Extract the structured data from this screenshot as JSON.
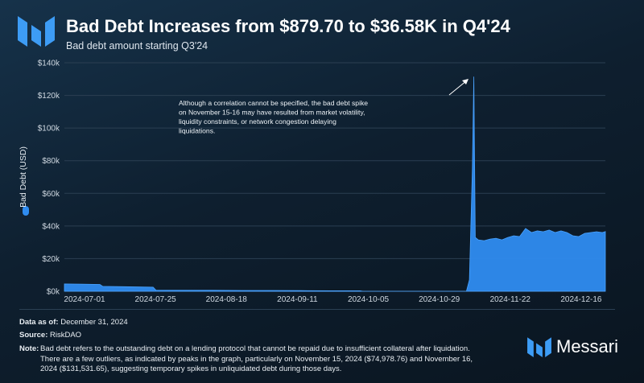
{
  "header": {
    "title": "Bad Debt Increases from $879.70 to $36.58K in Q4'24",
    "subtitle": "Bad debt amount starting Q3'24"
  },
  "chart_data": {
    "type": "area",
    "title": "Bad Debt Increases from $879.70 to $36.58K in Q4'24",
    "subtitle": "Bad debt amount starting Q3'24",
    "xlabel": "",
    "ylabel": "Bad Debt (USD)",
    "legend": "left",
    "ylim": [
      0,
      140000
    ],
    "y_ticks": [
      0,
      20000,
      40000,
      60000,
      80000,
      100000,
      120000,
      140000
    ],
    "y_tick_labels": [
      "$0k",
      "$20k",
      "$40k",
      "$60k",
      "$80k",
      "$100k",
      "$120k",
      "$140k"
    ],
    "x_tick_labels": [
      "2024-07-01",
      "2024-07-25",
      "2024-08-18",
      "2024-09-11",
      "2024-10-05",
      "2024-10-29",
      "2024-11-22",
      "2024-12-16"
    ],
    "x_tick_days": [
      0,
      24,
      48,
      72,
      96,
      120,
      144,
      168
    ],
    "x_range_days": [
      0,
      183
    ],
    "color": "#2f8cf0",
    "series": [
      {
        "name": "Bad Debt (USD)",
        "days": [
          0,
          6,
          12,
          13,
          20,
          26,
          30,
          31,
          40,
          50,
          60,
          70,
          80,
          90,
          100,
          101,
          110,
          120,
          136,
          137,
          138,
          138.5,
          139,
          140,
          142,
          144,
          146,
          148,
          150,
          152,
          154,
          156,
          158,
          160,
          162,
          164,
          166,
          168,
          170,
          172,
          174,
          176,
          178,
          180,
          182,
          183
        ],
        "values": [
          4500,
          4400,
          4200,
          3000,
          2800,
          2600,
          2500,
          700,
          600,
          600,
          500,
          500,
          400,
          300,
          300,
          0,
          0,
          0,
          0,
          7000,
          74979,
          131532,
          33000,
          31500,
          31000,
          32000,
          32500,
          31500,
          33000,
          34000,
          33500,
          38500,
          36000,
          37000,
          36500,
          37500,
          36000,
          37000,
          36000,
          34000,
          33500,
          35500,
          36000,
          36500,
          36000,
          36580
        ]
      }
    ],
    "annotations": [
      {
        "text": "Although a correlation cannot be specified, the bad debt spike on November 15-16 may have resulted from market volatility, liquidity constraints, or network congestion delaying liquidations.",
        "points_to": "2024-11-16 peak"
      }
    ]
  },
  "footer": {
    "data_as_of_label": "Data as of:",
    "data_as_of_value": "December 31, 2024",
    "source_label": "Source:",
    "source_value": "RiskDAO",
    "note_label": "Note:",
    "note_text": "Bad debt refers to the outstanding debt on a lending protocol that cannot be repaid due to insufficient collateral after liquidation. There are a few outliers, as indicated by peaks in the graph, particularly on November 15, 2024 ($74,978.76) and November 16, 2024 ($131,531.65), suggesting temporary spikes in unliquidated debt during those days."
  },
  "brand": {
    "name": "Messari"
  },
  "colors": {
    "accent": "#2f8cf0",
    "grid": "#2b3f52",
    "axis_text": "#cfd8e1"
  }
}
